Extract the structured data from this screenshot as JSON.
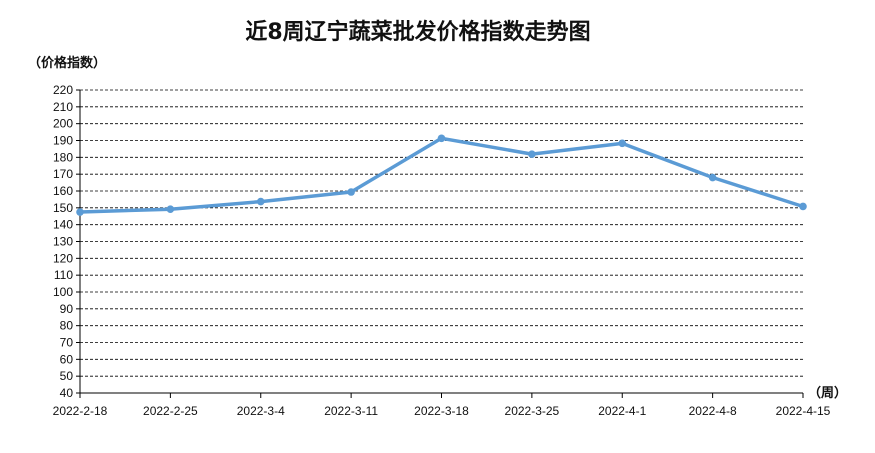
{
  "chart_data": {
    "type": "line",
    "title": "近8周辽宁蔬菜批发价格指数走势图",
    "ylabel": "（价格指数）",
    "xlabel": "（周）",
    "categories": [
      "2022-2-18",
      "2022-2-25",
      "2022-3-4",
      "2022-3-11",
      "2022-3-18",
      "2022-3-25",
      "2022-4-1",
      "2022-4-8",
      "2022-4-15"
    ],
    "series": [
      {
        "values": [
          147.5,
          149.2,
          153.7,
          159.4,
          191.3,
          181.9,
          188.3,
          168.0,
          150.8
        ]
      }
    ],
    "ylim": [
      40,
      220
    ],
    "ytick_step": 10,
    "grid": "horizontal-dashed",
    "legend": "none",
    "line_color": "#5b9bd5"
  }
}
